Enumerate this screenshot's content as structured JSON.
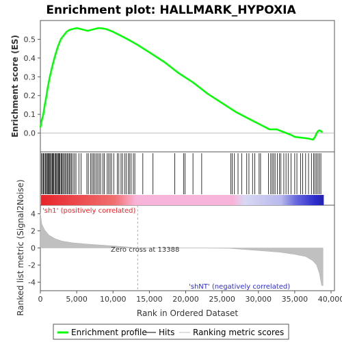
{
  "chart_data": {
    "type": "line",
    "title": "Enrichment plot: HALLMARK_HYPOXIA",
    "top_panel": {
      "ylabel": "Enrichment score (ES)",
      "ylim": [
        -0.1,
        0.6
      ],
      "yticks": [
        "0.5",
        "0.4",
        "0.3",
        "0.2",
        "0.1",
        "0.0"
      ],
      "series": [
        {
          "name": "Enrichment profile",
          "color": "#00ff00",
          "x": [
            0,
            200,
            400,
            600,
            800,
            1000,
            1300,
            1600,
            2000,
            2400,
            2800,
            3200,
            3600,
            4000,
            4500,
            5000,
            5500,
            6000,
            6500,
            7000,
            7500,
            8000,
            8500,
            9000,
            10000,
            11000,
            12000,
            13388,
            15000,
            17000,
            19000,
            21000,
            23000,
            25000,
            27000,
            29000,
            31000,
            31500,
            32500,
            33500,
            34500,
            35000,
            36000,
            37000,
            37500,
            37800,
            38000,
            38200,
            38400,
            38600,
            38800
          ],
          "y": [
            0.03,
            0.07,
            0.1,
            0.15,
            0.19,
            0.24,
            0.3,
            0.35,
            0.41,
            0.46,
            0.5,
            0.52,
            0.54,
            0.55,
            0.555,
            0.56,
            0.555,
            0.55,
            0.545,
            0.55,
            0.555,
            0.56,
            0.558,
            0.555,
            0.54,
            0.52,
            0.5,
            0.47,
            0.43,
            0.38,
            0.32,
            0.27,
            0.21,
            0.16,
            0.11,
            0.07,
            0.03,
            0.02,
            0.02,
            0.005,
            -0.01,
            -0.02,
            -0.025,
            -0.03,
            -0.035,
            -0.02,
            0.0,
            0.01,
            0.015,
            0.01,
            0.005
          ]
        }
      ]
    },
    "hits_panel": {
      "hit_positions": [
        150,
        300,
        420,
        550,
        700,
        820,
        950,
        1050,
        1150,
        1250,
        1400,
        1500,
        1650,
        1750,
        1850,
        2000,
        2100,
        2250,
        2350,
        2500,
        2600,
        2700,
        2850,
        2950,
        3100,
        3250,
        3400,
        3550,
        3700,
        3850,
        4000,
        4150,
        4300,
        4500,
        4700,
        4900,
        5300,
        5600,
        6400,
        6600,
        6900,
        7100,
        7300,
        7500,
        7700,
        7900,
        8100,
        8300,
        8600,
        8800,
        9200,
        9400,
        9600,
        9800,
        10100,
        10600,
        10800,
        11100,
        11300,
        11600,
        11800,
        12100,
        12300,
        12500,
        12800,
        13000,
        14100,
        15500,
        18500,
        19700,
        19900,
        21000,
        22200,
        26200,
        26400,
        26700,
        27200,
        27700,
        28400,
        28700,
        29200,
        29500,
        30100,
        30300,
        31400,
        31700,
        31900,
        32100,
        32300,
        32600,
        32900,
        33100,
        33500,
        33800,
        34100,
        34500,
        35000,
        35300,
        35800,
        36100,
        36500,
        36900,
        37300,
        37600,
        37800,
        38000,
        38200,
        38400,
        38600
      ],
      "gradient_left_color": "#e8242a",
      "gradient_mid_color": "#f8b4d8",
      "gradient_right_color": "#2c2ccc"
    },
    "bottom_panel": {
      "ylabel": "Ranked list metric (Signal2Noise)",
      "ylim": [
        -5,
        5
      ],
      "yticks": [
        "4",
        "2",
        "0",
        "-2",
        "-4"
      ],
      "series": [
        {
          "name": "Ranking metric scores",
          "color": "#c0c0c0",
          "x": [
            0,
            200,
            600,
            1200,
            2000,
            3000,
            4500,
            6500,
            9000,
            11500,
            13388,
            15000,
            20000,
            26000,
            30000,
            33000,
            35000,
            36500,
            37500,
            38000,
            38400,
            38700,
            38900
          ],
          "y": [
            4.1,
            2.8,
            2.1,
            1.5,
            1.1,
            0.8,
            0.6,
            0.45,
            0.3,
            0.15,
            0.0,
            0.0,
            0.0,
            -0.05,
            -0.3,
            -0.5,
            -0.75,
            -1.0,
            -1.5,
            -2.0,
            -3.0,
            -4.4,
            -4.4
          ]
        }
      ],
      "zero_cross_x": 13388,
      "annotations": {
        "positive": "'sh1' (positively correlated)",
        "zero_cross": "Zero cross at 13388",
        "negative": "'shNT' (negatively correlated)"
      }
    },
    "xaxis": {
      "label": "Rank in Ordered Dataset",
      "ticks": [
        "0",
        "5,000",
        "10,000",
        "15,000",
        "20,000",
        "25,000",
        "30,000",
        "35,000",
        "40,000"
      ],
      "tick_values": [
        0,
        5000,
        10000,
        15000,
        20000,
        25000,
        30000,
        35000,
        40000
      ],
      "xlim": [
        0,
        40000
      ]
    },
    "legend": {
      "placement": "bottom",
      "items": [
        {
          "label": "Enrichment profile",
          "color": "#00ff00"
        },
        {
          "label": "Hits",
          "color": "#000000"
        },
        {
          "label": "Ranking metric scores",
          "color": "#c0c0c0"
        }
      ]
    }
  }
}
